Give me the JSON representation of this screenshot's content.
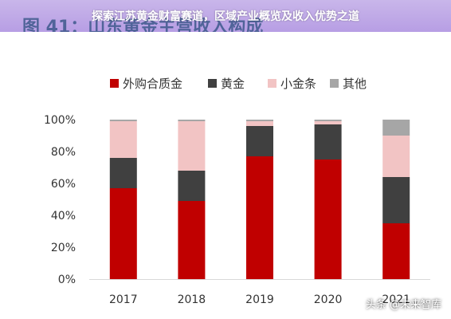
{
  "page": {
    "banner_title": "探索江苏黄金财富赛道，区域产业概览及收入优势之道",
    "watermark": "头条 @未来智库"
  },
  "chart_data": {
    "type": "bar",
    "stacked": true,
    "title": "图 41：山东黄金主营收入构成",
    "categories": [
      "2017",
      "2018",
      "2019",
      "2020",
      "2021"
    ],
    "series": [
      {
        "name": "外购合质金",
        "color": "#c00000",
        "values": [
          57,
          49,
          77,
          75,
          35
        ]
      },
      {
        "name": "黄金",
        "color": "#404040",
        "values": [
          19,
          19,
          19,
          22,
          29
        ]
      },
      {
        "name": "小金条",
        "color": "#f2c4c4",
        "values": [
          23,
          31,
          3,
          2,
          26
        ]
      },
      {
        "name": "其他",
        "color": "#a6a6a6",
        "values": [
          1,
          1,
          1,
          1,
          10
        ]
      }
    ],
    "ylim": [
      0,
      100
    ],
    "yticks": [
      "0%",
      "20%",
      "40%",
      "60%",
      "80%",
      "100%"
    ],
    "legend_position": "top",
    "grid": false
  }
}
